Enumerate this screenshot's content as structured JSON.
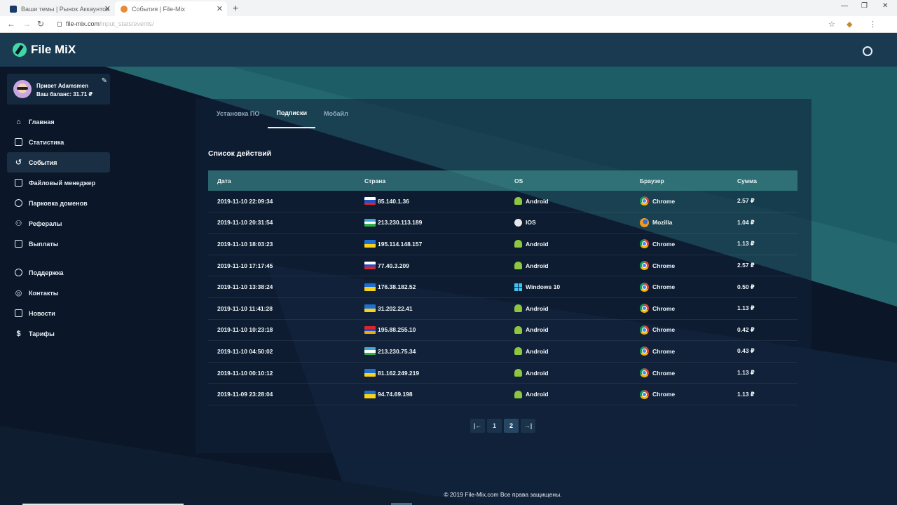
{
  "browser": {
    "tabs": [
      {
        "title": "Ваши темы | Рынок Аккаунтов"
      },
      {
        "title": "События | File-Mix"
      }
    ],
    "new_tab": "+",
    "url_domain": "file-mix.com",
    "url_path": "/input_stats/events/"
  },
  "brand": {
    "name": "File MiX",
    "accent": "#3fd8a4"
  },
  "user": {
    "greeting": "Привет Adamsmen",
    "balance": "Ваш баланс: 31.71 ₽"
  },
  "nav": {
    "main": [
      {
        "label": "Главная",
        "icon": "home-icon"
      },
      {
        "label": "Статистика",
        "icon": "stats-icon"
      },
      {
        "label": "События",
        "icon": "history-icon"
      },
      {
        "label": "Файловый менеджер",
        "icon": "file-icon"
      },
      {
        "label": "Парковка доменов",
        "icon": "globe-icon"
      },
      {
        "label": "Рефералы",
        "icon": "users-icon"
      },
      {
        "label": "Выплаты",
        "icon": "payout-icon"
      }
    ],
    "secondary": [
      {
        "label": "Поддержка",
        "icon": "support-icon"
      },
      {
        "label": "Контакты",
        "icon": "contacts-icon"
      },
      {
        "label": "Новости",
        "icon": "news-icon"
      },
      {
        "label": "Тарифы",
        "icon": "dollar-icon"
      }
    ]
  },
  "panel": {
    "tabs": [
      "Установка ПО",
      "Подписки",
      "Мобайл"
    ],
    "list_title": "Список действий"
  },
  "table": {
    "headers": [
      "Дата",
      "Страна",
      "OS",
      "Браузер",
      "Сумма"
    ],
    "rows": [
      {
        "date": "2019-11-10 22:09:34",
        "flag": "RU",
        "ip": "85.140.1.36",
        "os": "Android",
        "browser": "Chrome",
        "sum": "2.57 ₽"
      },
      {
        "date": "2019-11-10 20:31:54",
        "flag": "UZ",
        "ip": "213.230.113.189",
        "os": "IOS",
        "browser": "Mozilla",
        "sum": "1.04 ₽"
      },
      {
        "date": "2019-11-10 18:03:23",
        "flag": "UA",
        "ip": "195.114.148.157",
        "os": "Android",
        "browser": "Chrome",
        "sum": "1.13 ₽"
      },
      {
        "date": "2019-11-10 17:17:45",
        "flag": "RU",
        "ip": "77.40.3.209",
        "os": "Android",
        "browser": "Chrome",
        "sum": "2.57 ₽"
      },
      {
        "date": "2019-11-10 13:38:24",
        "flag": "UA",
        "ip": "176.38.182.52",
        "os": "Windows 10",
        "browser": "Chrome",
        "sum": "0.50 ₽"
      },
      {
        "date": "2019-11-10 11:41:28",
        "flag": "UA",
        "ip": "31.202.22.41",
        "os": "Android",
        "browser": "Chrome",
        "sum": "1.13 ₽"
      },
      {
        "date": "2019-11-10 10:23:18",
        "flag": "AM",
        "ip": "195.88.255.10",
        "os": "Android",
        "browser": "Chrome",
        "sum": "0.42 ₽"
      },
      {
        "date": "2019-11-10 04:50:02",
        "flag": "UZ",
        "ip": "213.230.75.34",
        "os": "Android",
        "browser": "Chrome",
        "sum": "0.43 ₽"
      },
      {
        "date": "2019-11-10 00:10:12",
        "flag": "UA",
        "ip": "81.162.249.219",
        "os": "Android",
        "browser": "Chrome",
        "sum": "1.13 ₽"
      },
      {
        "date": "2019-11-09 23:28:04",
        "flag": "UA",
        "ip": "94.74.69.198",
        "os": "Android",
        "browser": "Chrome",
        "sum": "1.13 ₽"
      }
    ]
  },
  "pagination": {
    "prev": "|←",
    "pages": [
      "1",
      "2"
    ],
    "current": "2",
    "next": "→|"
  },
  "footer": {
    "text": "© 2019 File-Mix.com Все права защищены."
  }
}
